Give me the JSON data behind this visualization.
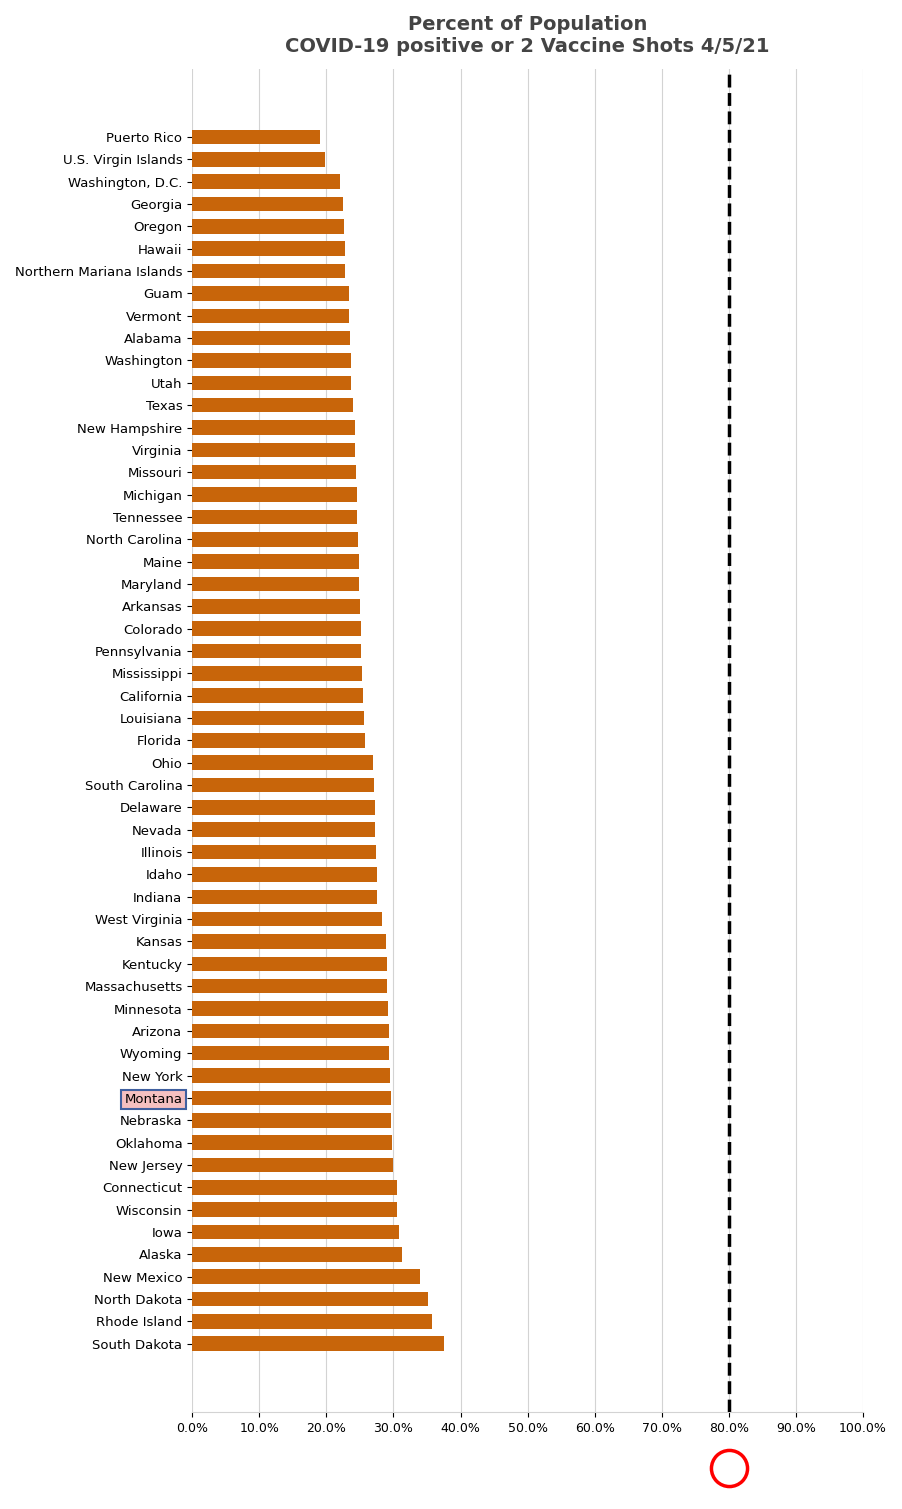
{
  "title_line1": "Percent of Population",
  "title_line2": "COVID-19 positive or 2 Vaccine Shots 4/5/21",
  "bar_color": "#C8650A",
  "highlight_bar": "Montana",
  "highlight_facecolor": "#F5C0C0",
  "highlight_edgecolor": "#4060A0",
  "dashed_line_x": 0.8,
  "dashed_line_color": "black",
  "circle_color": "red",
  "xlim": [
    0.0,
    1.0
  ],
  "xticks": [
    0.0,
    0.1,
    0.2,
    0.3,
    0.4,
    0.5,
    0.6,
    0.7,
    0.8,
    0.9,
    1.0
  ],
  "xtick_labels": [
    "0.0%",
    "10.0%",
    "20.0%",
    "30.0%",
    "40.0%",
    "50.0%",
    "60.0%",
    "70.0%",
    "80.0%",
    "90.0%",
    "100.0%"
  ],
  "categories": [
    "Puerto Rico",
    "U.S. Virgin Islands",
    "Washington, D.C.",
    "Georgia",
    "Oregon",
    "Hawaii",
    "Northern Mariana Islands",
    "Guam",
    "Vermont",
    "Alabama",
    "Washington",
    "Utah",
    "Texas",
    "New Hampshire",
    "Virginia",
    "Missouri",
    "Michigan",
    "Tennessee",
    "North Carolina",
    "Maine",
    "Maryland",
    "Arkansas",
    "Colorado",
    "Pennsylvania",
    "Mississippi",
    "California",
    "Louisiana",
    "Florida",
    "Ohio",
    "South Carolina",
    "Delaware",
    "Nevada",
    "Illinois",
    "Idaho",
    "Indiana",
    "West Virginia",
    "Kansas",
    "Kentucky",
    "Massachusetts",
    "Minnesota",
    "Arizona",
    "Wyoming",
    "New York",
    "Montana",
    "Nebraska",
    "Oklahoma",
    "New Jersey",
    "Connecticut",
    "Wisconsin",
    "Iowa",
    "Alaska",
    "New Mexico",
    "North Dakota",
    "Rhode Island",
    "South Dakota"
  ],
  "values": [
    0.19,
    0.198,
    0.22,
    0.225,
    0.226,
    0.227,
    0.228,
    0.233,
    0.234,
    0.235,
    0.236,
    0.237,
    0.24,
    0.242,
    0.243,
    0.244,
    0.245,
    0.246,
    0.247,
    0.248,
    0.249,
    0.25,
    0.251,
    0.252,
    0.253,
    0.254,
    0.256,
    0.258,
    0.27,
    0.271,
    0.272,
    0.273,
    0.274,
    0.275,
    0.276,
    0.283,
    0.289,
    0.29,
    0.291,
    0.292,
    0.293,
    0.294,
    0.295,
    0.296,
    0.297,
    0.298,
    0.3,
    0.305,
    0.306,
    0.308,
    0.313,
    0.34,
    0.352,
    0.358,
    0.375
  ]
}
